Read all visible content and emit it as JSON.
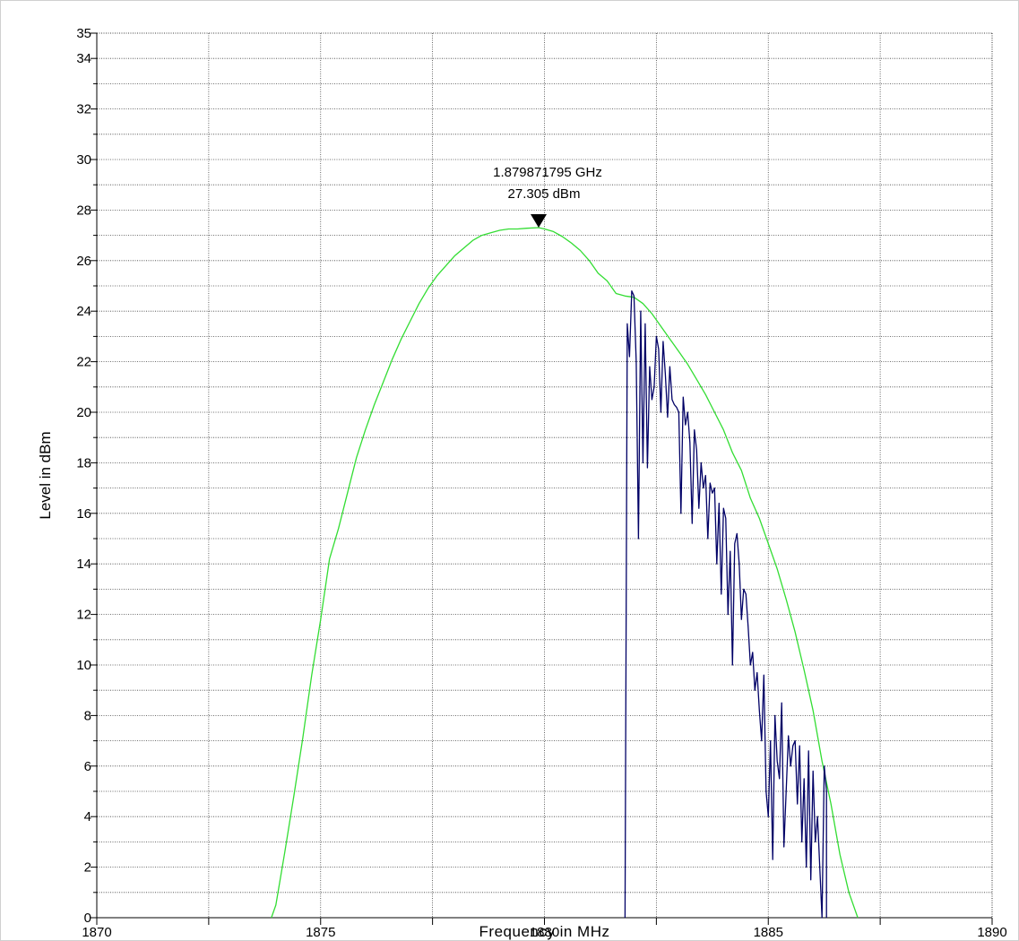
{
  "chart_data": {
    "type": "line",
    "xlabel": "Frequency in MHz",
    "ylabel": "Level in dBm",
    "xlim": [
      1870,
      1890
    ],
    "ylim": [
      0,
      35
    ],
    "x_tick_labels": [
      "1870",
      "1875",
      "1880",
      "1885",
      "1890"
    ],
    "y_tick_labels": [
      "0",
      "2",
      "4",
      "6",
      "8",
      "10",
      "12",
      "14",
      "16",
      "18",
      "20",
      "22",
      "24",
      "26",
      "28",
      "30",
      "32",
      "34",
      "35"
    ],
    "grid": true,
    "marker": {
      "freq_label": "1.879871795 GHz",
      "level_label": "27.305 dBm",
      "x": 1879.87,
      "y": 27.305
    },
    "series": [
      {
        "color": "#33dd33",
        "x": [
          1873.9,
          1874.0,
          1874.2,
          1874.4,
          1874.6,
          1874.8,
          1875.0,
          1875.2,
          1875.4,
          1875.6,
          1875.8,
          1876.0,
          1876.2,
          1876.4,
          1876.6,
          1876.8,
          1877.0,
          1877.2,
          1877.4,
          1877.6,
          1877.8,
          1878.0,
          1878.2,
          1878.4,
          1878.6,
          1878.8,
          1879.0,
          1879.2,
          1879.4,
          1879.6,
          1879.87,
          1880.0,
          1880.2,
          1880.4,
          1880.6,
          1880.8,
          1881.0,
          1881.2,
          1881.4,
          1881.6,
          1881.8,
          1882.0,
          1882.2,
          1882.4,
          1882.6,
          1882.8,
          1883.0,
          1883.2,
          1883.4,
          1883.6,
          1883.8,
          1884.0,
          1884.2,
          1884.4,
          1884.6,
          1884.8,
          1885.0,
          1885.2,
          1885.4,
          1885.6,
          1885.8,
          1886.0,
          1886.2,
          1886.4,
          1886.6,
          1886.8,
          1887.0
        ],
        "y": [
          0.0,
          0.5,
          2.6,
          4.8,
          7.1,
          9.6,
          11.8,
          14.2,
          15.4,
          16.8,
          18.2,
          19.3,
          20.3,
          21.2,
          22.1,
          22.9,
          23.6,
          24.3,
          24.9,
          25.4,
          25.8,
          26.2,
          26.5,
          26.8,
          27.0,
          27.1,
          27.2,
          27.25,
          27.25,
          27.28,
          27.305,
          27.25,
          27.15,
          26.95,
          26.7,
          26.4,
          26.0,
          25.5,
          25.2,
          24.7,
          24.6,
          24.55,
          24.3,
          23.9,
          23.4,
          22.9,
          22.4,
          21.9,
          21.3,
          20.7,
          20.0,
          19.3,
          18.4,
          17.7,
          16.6,
          15.8,
          14.8,
          13.8,
          12.6,
          11.3,
          9.8,
          8.2,
          6.2,
          4.5,
          2.5,
          1.0,
          0.0
        ]
      },
      {
        "color": "#000066",
        "x": [
          1881.8,
          1881.85,
          1881.9,
          1881.95,
          1882.0,
          1882.05,
          1882.1,
          1882.15,
          1882.2,
          1882.25,
          1882.3,
          1882.35,
          1882.4,
          1882.45,
          1882.5,
          1882.55,
          1882.6,
          1882.65,
          1882.7,
          1882.75,
          1882.8,
          1882.85,
          1882.9,
          1882.95,
          1883.0,
          1883.05,
          1883.1,
          1883.15,
          1883.2,
          1883.25,
          1883.3,
          1883.35,
          1883.4,
          1883.45,
          1883.5,
          1883.55,
          1883.6,
          1883.65,
          1883.7,
          1883.75,
          1883.8,
          1883.85,
          1883.9,
          1883.95,
          1884.0,
          1884.05,
          1884.1,
          1884.15,
          1884.2,
          1884.25,
          1884.3,
          1884.35,
          1884.4,
          1884.45,
          1884.5,
          1884.55,
          1884.6,
          1884.65,
          1884.7,
          1884.75,
          1884.8,
          1884.85,
          1884.9,
          1884.95,
          1885.0,
          1885.05,
          1885.1,
          1885.15,
          1885.2,
          1885.25,
          1885.3,
          1885.35,
          1885.4,
          1885.45,
          1885.5,
          1885.55,
          1885.6,
          1885.65,
          1885.7,
          1885.75,
          1885.8,
          1885.85,
          1885.9,
          1885.95,
          1886.0,
          1886.05,
          1886.1,
          1886.15,
          1886.2,
          1886.25,
          1886.3,
          1886.3
        ],
        "y": [
          0.0,
          23.5,
          22.2,
          24.8,
          24.6,
          22.0,
          15.0,
          24.0,
          18.0,
          23.5,
          17.8,
          21.8,
          20.5,
          21.0,
          23.0,
          22.5,
          20.0,
          22.8,
          21.5,
          19.8,
          21.8,
          20.5,
          20.3,
          20.2,
          20.0,
          16.0,
          20.6,
          19.5,
          20.0,
          18.8,
          15.6,
          19.3,
          18.5,
          16.2,
          18.0,
          17.0,
          17.5,
          15.0,
          17.2,
          16.8,
          17.0,
          14.0,
          16.4,
          12.8,
          16.2,
          15.8,
          12.0,
          14.5,
          10.0,
          14.8,
          15.2,
          14.0,
          11.8,
          13.0,
          12.8,
          11.5,
          10.0,
          10.5,
          9.0,
          9.7,
          8.2,
          7.0,
          9.6,
          5.0,
          4.0,
          7.0,
          2.3,
          8.0,
          6.2,
          5.5,
          8.5,
          2.8,
          5.0,
          7.2,
          6.0,
          6.8,
          7.0,
          4.5,
          6.8,
          3.0,
          5.5,
          2.0,
          6.6,
          1.5,
          5.8,
          3.0,
          4.0,
          2.0,
          0.0,
          6.0,
          5.0,
          0.0
        ]
      }
    ]
  }
}
